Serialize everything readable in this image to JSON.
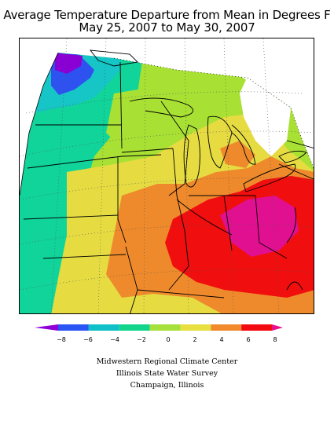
{
  "title": {
    "line1": "Average Temperature Departure from Mean in Degrees F",
    "line2": "May 25, 2007 to May 30, 2007"
  },
  "legend": {
    "ticks": [
      "−8",
      "−6",
      "−4",
      "−2",
      "0",
      "2",
      "4",
      "6",
      "8"
    ],
    "colors": [
      "#9000d8",
      "#2a54f4",
      "#10c0c8",
      "#12d48a",
      "#a6e03a",
      "#e8e040",
      "#f08a2a",
      "#f20a10",
      "#e8108c"
    ]
  },
  "map": {
    "colors": {
      "violet": "#8a00d4",
      "blue": "#2e52f0",
      "cyan": "#16c6c6",
      "teal": "#10d49a",
      "green": "#a8e034",
      "yellow": "#e6dc42",
      "orange": "#ee8a2c",
      "red": "#f00e0e",
      "magenta": "#e01090"
    }
  },
  "credits": {
    "line1": "Midwestern Regional Climate Center",
    "line2": "Illinois State Water Survey",
    "line3": "Champaign, Illinois"
  }
}
